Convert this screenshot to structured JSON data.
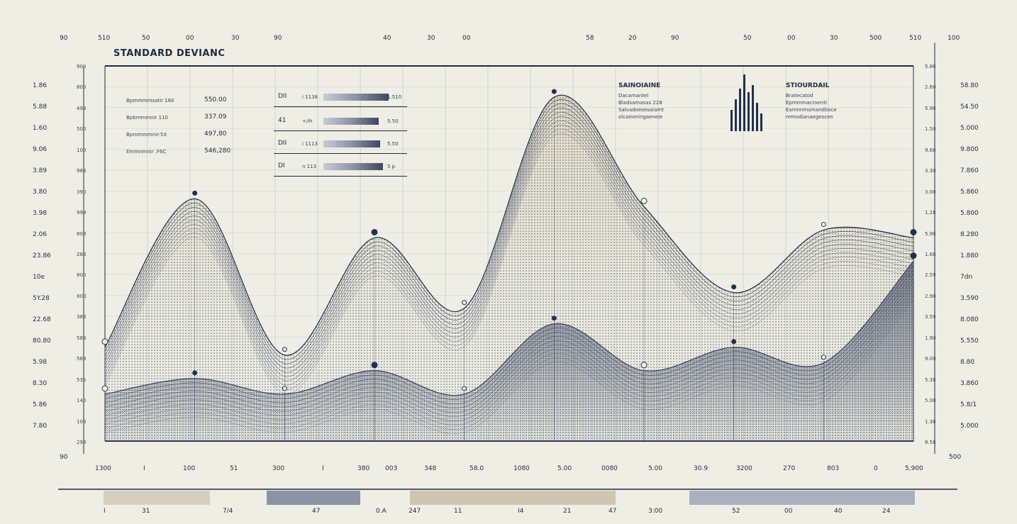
{
  "title": "STANDARD DEVIANC",
  "top_ticks": [
    "90",
    "510",
    "50",
    "00",
    "30",
    "90",
    "40",
    "30",
    "00",
    "58",
    "20",
    "90",
    "50",
    "00",
    "30",
    "500",
    "510",
    "100"
  ],
  "bottom_ticks": [
    "90",
    "1300",
    "I",
    "100",
    "51",
    "300",
    "I",
    "380",
    "003",
    "348",
    "58.0",
    "1080",
    "5.00",
    "0080",
    "5.00",
    "30.9",
    "3200",
    "270",
    "803",
    "0",
    "5,900",
    "500"
  ],
  "left_outer_ticks": [
    "1.86",
    "5.88",
    "1.60",
    "9.06",
    "3.89",
    "3.80",
    "3.98",
    "2.06",
    "23.86",
    "10e",
    "5Y.28",
    "22.68",
    "80.80",
    "5.98",
    "8.30",
    "5.86",
    "7.80"
  ],
  "left_inner_ticks": [
    "900",
    "800",
    "499",
    "500",
    "100",
    "983",
    "390",
    "999",
    "808",
    "288",
    "800",
    "800",
    "383",
    "588",
    "568",
    "535",
    "140",
    "108",
    "298"
  ],
  "right_inner_ticks": [
    "5.88",
    "2.60",
    "5.98",
    "1.50",
    "9.68",
    "3.30",
    "3.00",
    "1.28",
    "5.98",
    "1.68",
    "2.59",
    "2.90",
    "3.59",
    "1.90",
    "9.00",
    "5.38",
    "5.00",
    "1.38",
    "8.58"
  ],
  "right_outer_ticks": [
    "58.80",
    "54.50",
    "5.000",
    "9.800",
    "7.860",
    "5.860",
    "5.800",
    "8.280",
    "1.880",
    "7dn",
    "3.590",
    "8.080",
    "5.550",
    "8.80",
    "3.860",
    "5.8/1",
    "5.000"
  ],
  "legend_left": {
    "labels": [
      "Bpmmmmsatir 160",
      "Bpbmmmnir 110",
      "Bprommmnir-5X",
      "Emmnmnir .F6C"
    ],
    "values": [
      "550.00",
      "337.09",
      "497,80",
      "546,280"
    ]
  },
  "annotation_rows": [
    {
      "label": "DII",
      "code": "i 1138",
      "value": "1.510"
    },
    {
      "label": "41",
      "code": "+/ih",
      "value": "5.50"
    },
    {
      "label": "DII",
      "code": "i 1113",
      "value": "5.50"
    },
    {
      "label": "DI",
      "code": "n 113",
      "value": "5 p"
    }
  ],
  "panel_mid": {
    "title": "SAINOIAINE",
    "lines": [
      "Dacamantel",
      "Bladsamasas 228",
      "Salvadoesesalamt",
      "olcaineringaeneie"
    ]
  },
  "panel_right": {
    "title": "STIOURDAIL",
    "lines": [
      "Bratecatod",
      "Epmmmacroenti",
      "Eamnnmsmandboce",
      "remodianaegescen"
    ]
  },
  "scrub_labels": [
    "I",
    "31",
    "7/4",
    "47",
    "0.A",
    "247",
    "11",
    "I4",
    "21",
    "47",
    "3:00",
    "52",
    "00",
    "40",
    "24"
  ],
  "colors": {
    "background": "#eeeee4",
    "ink": "#1f2a44",
    "beige": "#d8cbb1",
    "navy": "#22304f"
  },
  "chart_data": {
    "type": "area",
    "title": "STANDARD DEVIANC",
    "series": [
      {
        "values": [
          120,
          310,
          110,
          260,
          170,
          440,
          300,
          190,
          270,
          260
        ]
      },
      {
        "values": [
          60,
          80,
          60,
          90,
          60,
          150,
          90,
          120,
          100,
          230
        ]
      }
    ],
    "x": [
      0,
      1,
      2,
      3,
      4,
      5,
      6,
      7,
      8,
      9
    ],
    "grid": true
  }
}
